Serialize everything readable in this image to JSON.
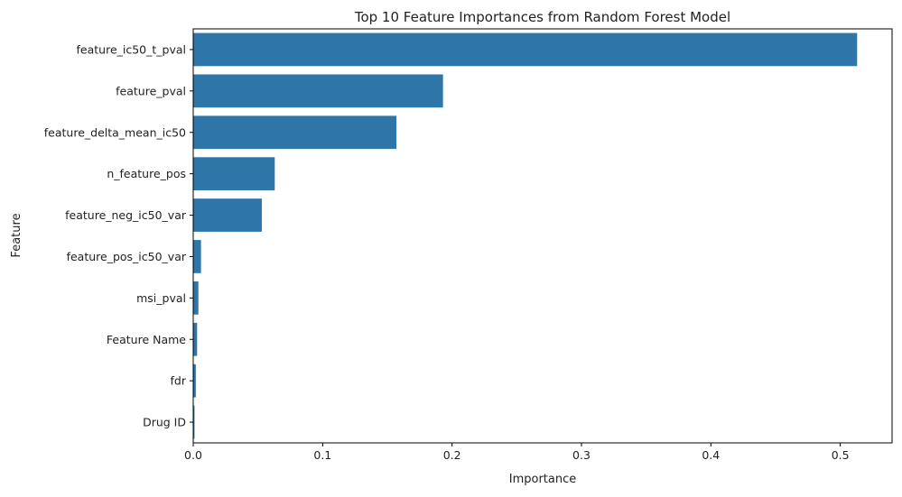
{
  "chart_data": {
    "type": "bar",
    "orientation": "horizontal",
    "title": "Top 10 Feature Importances from Random Forest Model",
    "xlabel": "Importance",
    "ylabel": "Feature",
    "xlim": [
      0,
      0.54
    ],
    "xticks": [
      "0.0",
      "0.1",
      "0.2",
      "0.3",
      "0.4",
      "0.5"
    ],
    "categories": [
      "feature_ic50_t_pval",
      "feature_pval",
      "feature_delta_mean_ic50",
      "n_feature_pos",
      "feature_neg_ic50_var",
      "feature_pos_ic50_var",
      "msi_pval",
      "Feature Name",
      "fdr",
      "Drug ID"
    ],
    "values": [
      0.513,
      0.193,
      0.157,
      0.063,
      0.053,
      0.006,
      0.004,
      0.003,
      0.002,
      0.001
    ],
    "bar_color": "#2e75a8",
    "grid": false,
    "legend": "none"
  }
}
